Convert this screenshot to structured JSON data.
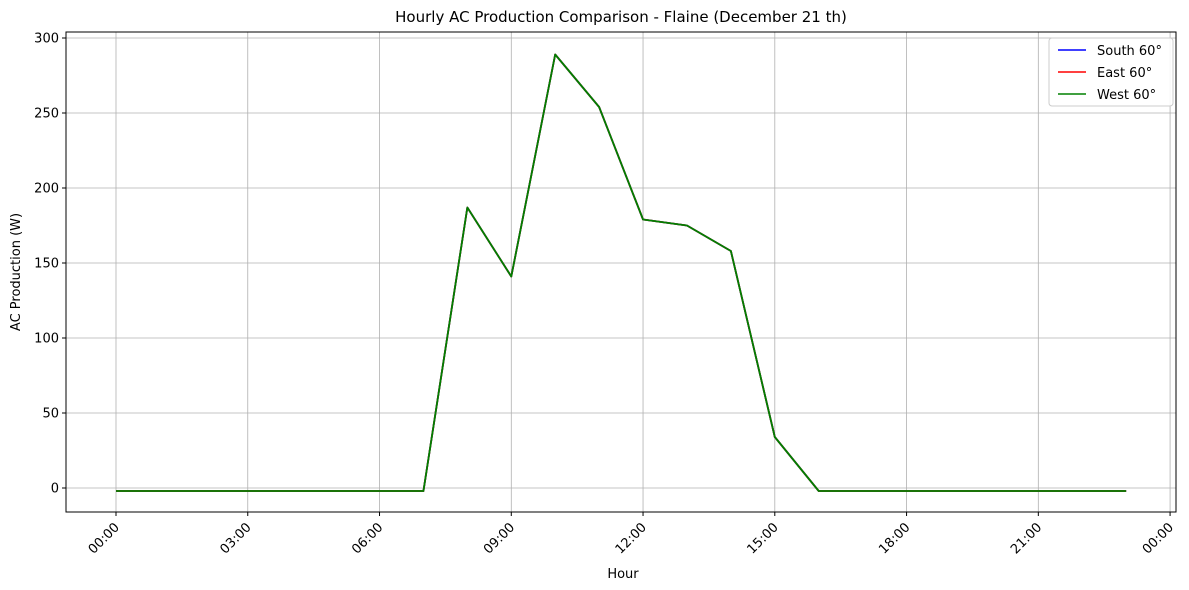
{
  "chart_data": {
    "type": "line",
    "title": "Hourly AC Production Comparison - Flaine (December 21 th)",
    "xlabel": "Hour",
    "ylabel": "AC Production (W)",
    "x": [
      "00:00",
      "01:00",
      "02:00",
      "03:00",
      "04:00",
      "05:00",
      "06:00",
      "07:00",
      "08:00",
      "09:00",
      "10:00",
      "11:00",
      "12:00",
      "13:00",
      "14:00",
      "15:00",
      "16:00",
      "17:00",
      "18:00",
      "19:00",
      "20:00",
      "21:00",
      "22:00",
      "23:00"
    ],
    "xticks": [
      "00:00",
      "03:00",
      "06:00",
      "09:00",
      "12:00",
      "15:00",
      "18:00",
      "21:00",
      "00:00"
    ],
    "yticks": [
      0,
      50,
      100,
      150,
      200,
      250,
      300
    ],
    "ylim": [
      -16,
      304
    ],
    "grid": true,
    "legend_position": "top-right",
    "series": [
      {
        "name": "South 60°",
        "color": "#0000ff",
        "values": [
          -2,
          -2,
          -2,
          -2,
          -2,
          -2,
          -2,
          -2,
          187,
          141,
          289,
          254,
          179,
          175,
          158,
          34,
          -2,
          -2,
          -2,
          -2,
          -2,
          -2,
          -2,
          -2
        ]
      },
      {
        "name": "East 60°",
        "color": "#ff0000",
        "values": [
          -2,
          -2,
          -2,
          -2,
          -2,
          -2,
          -2,
          -2,
          187,
          141,
          289,
          254,
          179,
          175,
          158,
          34,
          -2,
          -2,
          -2,
          -2,
          -2,
          -2,
          -2,
          -2
        ]
      },
      {
        "name": "West 60°",
        "color": "#008000",
        "values": [
          -2,
          -2,
          -2,
          -2,
          -2,
          -2,
          -2,
          -2,
          187,
          141,
          289,
          254,
          179,
          175,
          158,
          34,
          -2,
          -2,
          -2,
          -2,
          -2,
          -2,
          -2,
          -2
        ]
      }
    ]
  }
}
